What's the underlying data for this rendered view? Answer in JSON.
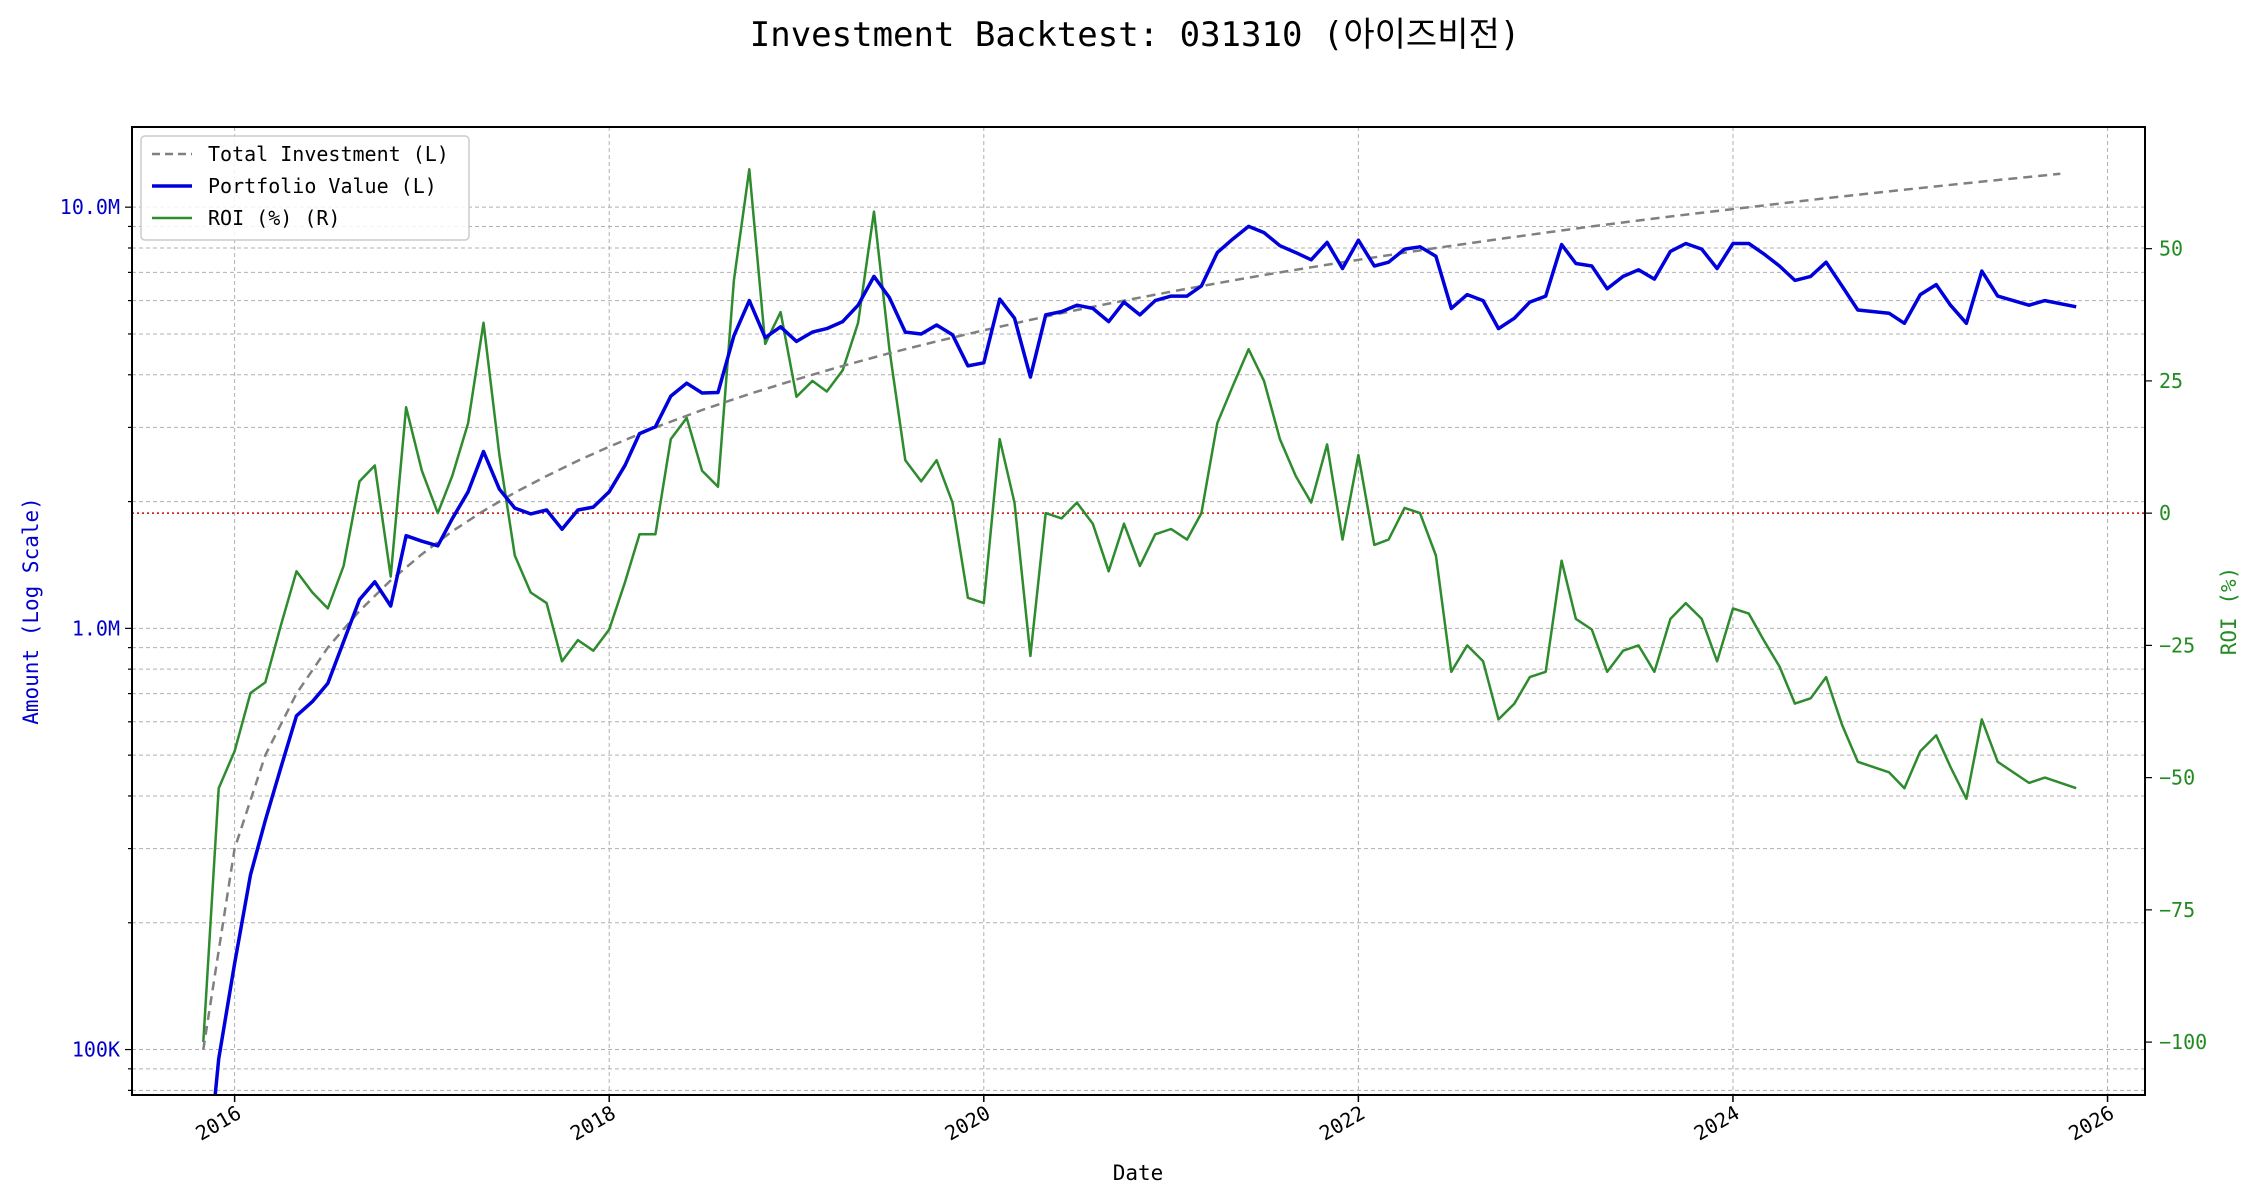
{
  "chart_data": {
    "type": "line",
    "title": "Investment Backtest: 031310 (아이즈비전)",
    "xlabel": "Date",
    "ylabel_left": "Amount (Log Scale)",
    "ylabel_right": "ROI (%)",
    "x_ticks": [
      "2016",
      "2018",
      "2020",
      "2022",
      "2024",
      "2026"
    ],
    "y_left_ticks": [
      {
        "value": 100000,
        "label": "100K"
      },
      {
        "value": 1000000,
        "label": "1.0M"
      },
      {
        "value": 10000000,
        "label": "10.0M"
      }
    ],
    "y_right_ticks": [
      {
        "value": -100,
        "label": "−100"
      },
      {
        "value": -75,
        "label": "−75"
      },
      {
        "value": -50,
        "label": "−50"
      },
      {
        "value": -25,
        "label": "−25"
      },
      {
        "value": 0,
        "label": "0"
      },
      {
        "value": 25,
        "label": "25"
      },
      {
        "value": 50,
        "label": "50"
      }
    ],
    "y_left_scale": "log",
    "y_left_range": [
      78000,
      15500000
    ],
    "y_right_range": [
      -110,
      73
    ],
    "x_range": [
      "2015-06-15",
      "2026-03-15"
    ],
    "grid": true,
    "legend_position": "top-left",
    "zero_line": {
      "value": 0,
      "axis": "right",
      "color": "#cc0000"
    },
    "colors": {
      "investment": "#808080",
      "portfolio": "#0000dd",
      "roi": "#2e8b2e",
      "left_axis": "#0000cc",
      "right_axis": "#228b22"
    },
    "series": [
      {
        "name": "Total Investment (L)",
        "axis": "left",
        "style": "dashed",
        "x": [
          "2015-11-01",
          "2016-01-01",
          "2016-03-01",
          "2016-05-01",
          "2016-07-01",
          "2016-09-01",
          "2016-11-01",
          "2017-01-01",
          "2017-03-01",
          "2017-05-01",
          "2017-07-01",
          "2017-09-01",
          "2017-11-01",
          "2018-01-01",
          "2018-04-01",
          "2018-07-01",
          "2018-10-01",
          "2019-01-01",
          "2019-04-01",
          "2019-07-01",
          "2019-10-01",
          "2020-01-01",
          "2020-04-01",
          "2020-07-01",
          "2020-10-01",
          "2021-01-01",
          "2021-04-01",
          "2021-07-01",
          "2021-10-01",
          "2022-01-01",
          "2022-06-01",
          "2022-11-01",
          "2023-04-01",
          "2023-09-01",
          "2024-02-01",
          "2024-07-01",
          "2024-12-01",
          "2025-05-01",
          "2025-10-01"
        ],
        "values": [
          100000,
          300000,
          500000,
          700000,
          900000,
          1100000,
          1300000,
          1500000,
          1700000,
          1900000,
          2100000,
          2300000,
          2500000,
          2700000,
          3000000,
          3300000,
          3600000,
          3900000,
          4200000,
          4500000,
          4800000,
          5100000,
          5400000,
          5700000,
          6000000,
          6300000,
          6600000,
          6900000,
          7200000,
          7500000,
          8000000,
          8500000,
          9000000,
          9500000,
          10000000,
          10500000,
          11000000,
          11500000,
          12000000
        ]
      },
      {
        "name": "Portfolio Value (L)",
        "axis": "left",
        "style": "solid",
        "x": [
          "2015-11-15",
          "2015-12-01",
          "2016-01-01",
          "2016-02-01",
          "2016-03-01",
          "2016-04-01",
          "2016-05-01",
          "2016-06-01",
          "2016-07-01",
          "2016-08-01",
          "2016-09-01",
          "2016-10-01",
          "2016-11-01",
          "2016-12-01",
          "2017-01-01",
          "2017-02-01",
          "2017-03-01",
          "2017-04-01",
          "2017-05-01",
          "2017-06-01",
          "2017-07-01",
          "2017-08-01",
          "2017-09-01",
          "2017-10-01",
          "2017-11-01",
          "2017-12-01",
          "2018-01-01",
          "2018-02-01",
          "2018-03-01",
          "2018-04-01",
          "2018-05-01",
          "2018-06-01",
          "2018-07-01",
          "2018-08-01",
          "2018-09-01",
          "2018-10-01",
          "2018-11-01",
          "2018-12-01",
          "2019-01-01",
          "2019-02-01",
          "2019-03-01",
          "2019-04-01",
          "2019-05-01",
          "2019-06-01",
          "2019-07-01",
          "2019-08-01",
          "2019-09-01",
          "2019-10-01",
          "2019-11-01",
          "2019-12-01",
          "2020-01-01",
          "2020-02-01",
          "2020-03-01",
          "2020-04-01",
          "2020-05-01",
          "2020-06-01",
          "2020-07-01",
          "2020-08-01",
          "2020-09-01",
          "2020-10-01",
          "2020-11-01",
          "2020-12-01",
          "2021-01-01",
          "2021-02-01",
          "2021-03-01",
          "2021-04-01",
          "2021-05-01",
          "2021-06-01",
          "2021-07-01",
          "2021-08-01",
          "2021-09-01",
          "2021-10-01",
          "2021-11-01",
          "2021-12-01",
          "2022-01-01",
          "2022-02-01",
          "2022-03-01",
          "2022-04-01",
          "2022-05-01",
          "2022-06-01",
          "2022-07-01",
          "2022-08-01",
          "2022-09-01",
          "2022-10-01",
          "2022-11-01",
          "2022-12-01",
          "2023-01-01",
          "2023-02-01",
          "2023-03-01",
          "2023-04-01",
          "2023-05-01",
          "2023-06-01",
          "2023-07-01",
          "2023-08-01",
          "2023-09-01",
          "2023-10-01",
          "2023-11-01",
          "2023-12-01",
          "2024-01-01",
          "2024-02-01",
          "2024-03-01",
          "2024-04-01",
          "2024-05-01",
          "2024-06-01",
          "2024-07-01",
          "2024-08-01",
          "2024-09-01",
          "2024-11-01",
          "2024-12-01",
          "2025-01-01",
          "2025-02-01",
          "2025-03-01",
          "2025-04-01",
          "2025-05-01",
          "2025-06-01",
          "2025-08-01",
          "2025-09-01",
          "2025-11-01"
        ],
        "values": [
          60000,
          95000,
          160000,
          260000,
          350000,
          470000,
          620000,
          670000,
          740000,
          930000,
          1170000,
          1290000,
          1130000,
          1660000,
          1610000,
          1570000,
          1820000,
          2110000,
          2630000,
          2140000,
          1930000,
          1870000,
          1910000,
          1720000,
          1910000,
          1940000,
          2110000,
          2440000,
          2900000,
          3010000,
          3560000,
          3820000,
          3620000,
          3630000,
          4950000,
          6000000,
          4900000,
          5200000,
          4800000,
          5050000,
          5150000,
          5350000,
          5850000,
          6850000,
          6100000,
          5050000,
          5000000,
          5250000,
          4980000,
          4200000,
          4270000,
          6050000,
          5450000,
          3950000,
          5550000,
          5650000,
          5850000,
          5750000,
          5350000,
          5950000,
          5550000,
          6000000,
          6150000,
          6150000,
          6500000,
          7800000,
          8400000,
          9000000,
          8700000,
          8100000,
          7800000,
          7500000,
          8250000,
          7150000,
          8350000,
          7250000,
          7400000,
          7950000,
          8050000,
          7650000,
          5750000,
          6200000,
          6000000,
          5150000,
          5450000,
          5950000,
          6150000,
          8150000,
          7350000,
          7250000,
          6400000,
          6850000,
          7100000,
          6750000,
          7850000,
          8200000,
          7950000,
          7150000,
          8200000,
          8200000,
          7750000,
          7250000,
          6700000,
          6850000,
          7400000,
          6500000,
          5700000,
          5600000,
          5300000,
          6200000,
          6550000,
          5850000,
          5300000,
          7050000,
          6150000,
          5850000,
          6000000,
          5800000
        ]
      },
      {
        "name": "ROI (%) (R)",
        "axis": "right",
        "style": "solid",
        "x": [
          "2015-11-01",
          "2015-12-01",
          "2016-01-01",
          "2016-02-01",
          "2016-03-01",
          "2016-04-01",
          "2016-05-01",
          "2016-06-01",
          "2016-07-01",
          "2016-08-01",
          "2016-09-01",
          "2016-10-01",
          "2016-11-01",
          "2016-12-01",
          "2017-01-01",
          "2017-02-01",
          "2017-03-01",
          "2017-04-01",
          "2017-05-01",
          "2017-06-01",
          "2017-07-01",
          "2017-08-01",
          "2017-09-01",
          "2017-10-01",
          "2017-11-01",
          "2017-12-01",
          "2018-01-01",
          "2018-02-01",
          "2018-03-01",
          "2018-04-01",
          "2018-05-01",
          "2018-06-01",
          "2018-07-01",
          "2018-08-01",
          "2018-09-01",
          "2018-10-01",
          "2018-11-01",
          "2018-12-01",
          "2019-01-01",
          "2019-02-01",
          "2019-03-01",
          "2019-04-01",
          "2019-05-01",
          "2019-06-01",
          "2019-07-01",
          "2019-08-01",
          "2019-09-01",
          "2019-10-01",
          "2019-11-01",
          "2019-12-01",
          "2020-01-01",
          "2020-02-01",
          "2020-03-01",
          "2020-04-01",
          "2020-05-01",
          "2020-06-01",
          "2020-07-01",
          "2020-08-01",
          "2020-09-01",
          "2020-10-01",
          "2020-11-01",
          "2020-12-01",
          "2021-01-01",
          "2021-02-01",
          "2021-03-01",
          "2021-04-01",
          "2021-05-01",
          "2021-06-01",
          "2021-07-01",
          "2021-08-01",
          "2021-09-01",
          "2021-10-01",
          "2021-11-01",
          "2021-12-01",
          "2022-01-01",
          "2022-02-01",
          "2022-03-01",
          "2022-04-01",
          "2022-05-01",
          "2022-06-01",
          "2022-07-01",
          "2022-08-01",
          "2022-09-01",
          "2022-10-01",
          "2022-11-01",
          "2022-12-01",
          "2023-01-01",
          "2023-02-01",
          "2023-03-01",
          "2023-04-01",
          "2023-05-01",
          "2023-06-01",
          "2023-07-01",
          "2023-08-01",
          "2023-09-01",
          "2023-10-01",
          "2023-11-01",
          "2023-12-01",
          "2024-01-01",
          "2024-02-01",
          "2024-03-01",
          "2024-04-01",
          "2024-05-01",
          "2024-06-01",
          "2024-07-01",
          "2024-08-01",
          "2024-09-01",
          "2024-11-01",
          "2024-12-01",
          "2025-01-01",
          "2025-02-01",
          "2025-03-01",
          "2025-04-01",
          "2025-05-01",
          "2025-06-01",
          "2025-08-01",
          "2025-09-01",
          "2025-11-01"
        ],
        "values": [
          -100,
          -52,
          -45,
          -34,
          -32,
          -21,
          -11,
          -15,
          -18,
          -10,
          6,
          9,
          -12,
          20,
          8,
          0,
          7,
          17,
          36,
          11,
          -8,
          -15,
          -17,
          -28,
          -24,
          -26,
          -22,
          -13,
          -4,
          -4,
          14,
          18,
          8,
          5,
          44,
          65,
          32,
          38,
          22,
          25,
          23,
          27,
          36,
          57,
          31,
          10,
          6,
          10,
          2,
          -16,
          -17,
          14,
          2,
          -27,
          0,
          -1,
          2,
          -2,
          -11,
          -2,
          -10,
          -4,
          -3,
          -5,
          0,
          17,
          24,
          31,
          25,
          14,
          7,
          2,
          13,
          -5,
          11,
          -6,
          -5,
          1,
          0,
          -8,
          -30,
          -25,
          -28,
          -39,
          -36,
          -31,
          -30,
          -9,
          -20,
          -22,
          -30,
          -26,
          -25,
          -30,
          -20,
          -17,
          -20,
          -28,
          -18,
          -19,
          -24,
          -29,
          -36,
          -35,
          -31,
          -40,
          -47,
          -49,
          -52,
          -45,
          -42,
          -48,
          -54,
          -39,
          -47,
          -51,
          -50,
          -52
        ]
      }
    ]
  }
}
